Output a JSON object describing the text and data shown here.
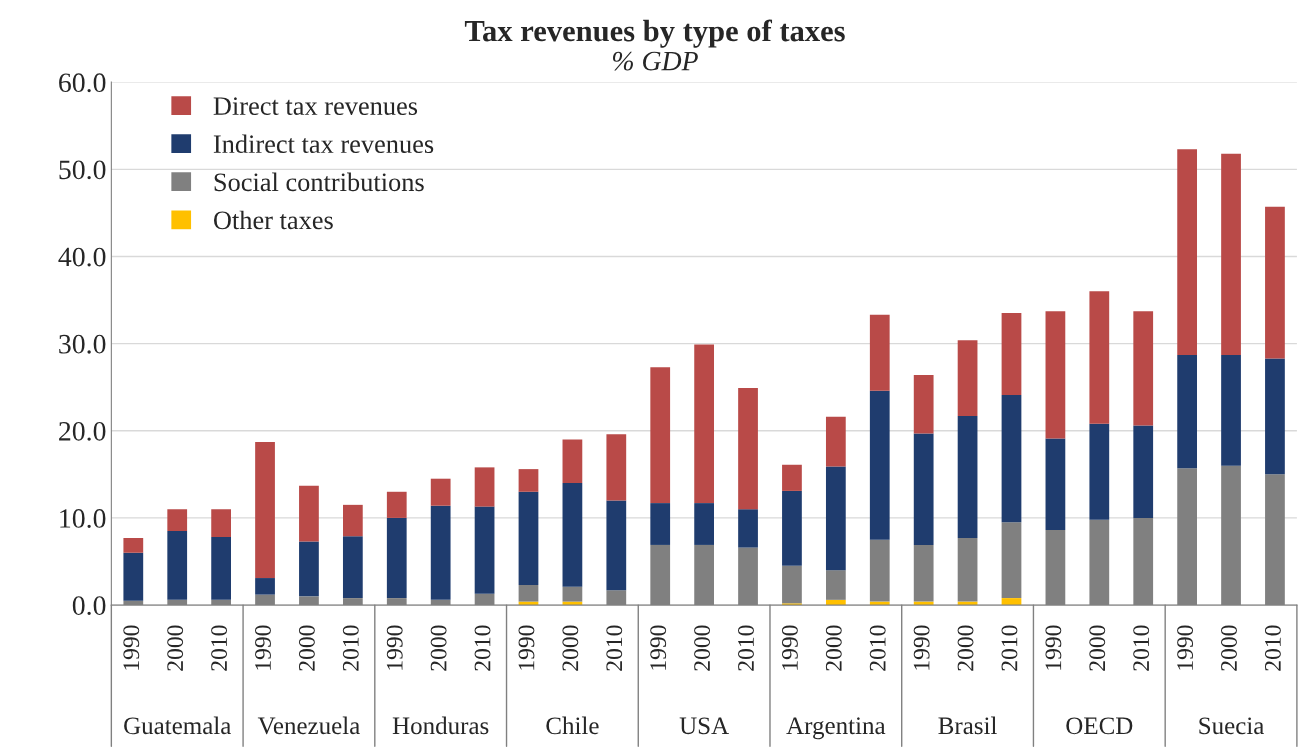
{
  "chart_data": {
    "type": "bar",
    "title": "Tax revenues by type of taxes",
    "subtitle": "% GDP",
    "categories": [
      "1990",
      "2000",
      "2010",
      "1990",
      "2000",
      "2010",
      "1990",
      "2000",
      "2010",
      "1990",
      "2000",
      "2010",
      "1990",
      "2000",
      "2010",
      "1990",
      "2000",
      "2010",
      "1990",
      "2000",
      "2010",
      "1990",
      "2000",
      "2010",
      "1990",
      "2000",
      "2010"
    ],
    "annotations": [
      "Guatemala",
      "Venezuela",
      "Honduras",
      "Chile",
      "USA",
      "Argentina",
      "Brasil",
      "OECD",
      "Suecia"
    ],
    "stacked": true,
    "series": [
      {
        "name": "Other taxes",
        "color": "#ffc000",
        "values": [
          0,
          0,
          0,
          0,
          0,
          0,
          0,
          0,
          0,
          0.4,
          0.4,
          0,
          0,
          0,
          0,
          0.2,
          0.6,
          0.4,
          0.4,
          0.4,
          0.8,
          0,
          0,
          0,
          0,
          0,
          0
        ]
      },
      {
        "name": "Social contributions",
        "color": "#808080",
        "values": [
          0.5,
          0.6,
          0.6,
          1.2,
          1.0,
          0.8,
          0.8,
          0.6,
          1.3,
          1.9,
          1.7,
          1.7,
          6.9,
          6.9,
          6.6,
          4.3,
          3.4,
          7.1,
          6.5,
          7.3,
          8.7,
          8.6,
          9.8,
          10.0,
          15.7,
          16.0,
          15.0
        ]
      },
      {
        "name": "Indirect tax revenues",
        "color": "#1f3c6e",
        "values": [
          5.5,
          7.9,
          7.2,
          1.9,
          6.3,
          7.1,
          9.2,
          10.8,
          10.0,
          10.7,
          11.9,
          10.3,
          4.8,
          4.8,
          4.4,
          8.6,
          11.9,
          17.1,
          12.8,
          14.0,
          14.6,
          10.5,
          11.0,
          10.6,
          13.0,
          12.7,
          13.3
        ]
      },
      {
        "name": "Direct tax revenues",
        "color": "#b94a48",
        "values": [
          1.7,
          2.5,
          3.2,
          15.6,
          6.4,
          3.6,
          3.0,
          3.1,
          4.5,
          2.6,
          5.0,
          7.6,
          15.6,
          18.2,
          13.9,
          3.0,
          5.7,
          8.7,
          6.7,
          8.7,
          9.4,
          14.6,
          15.2,
          13.1,
          23.6,
          23.1,
          17.4
        ]
      }
    ],
    "ylim": [
      0,
      60
    ],
    "yticks": [
      {
        "value": 0,
        "label": "0.0"
      },
      {
        "value": 10,
        "label": "10.0"
      },
      {
        "value": 20,
        "label": "20.0"
      },
      {
        "value": 30,
        "label": "30.0"
      },
      {
        "value": 40,
        "label": "40.0"
      },
      {
        "value": 50,
        "label": "50.0"
      },
      {
        "value": 60,
        "label": "60.0"
      }
    ],
    "grid": "y",
    "legend": "top left"
  }
}
